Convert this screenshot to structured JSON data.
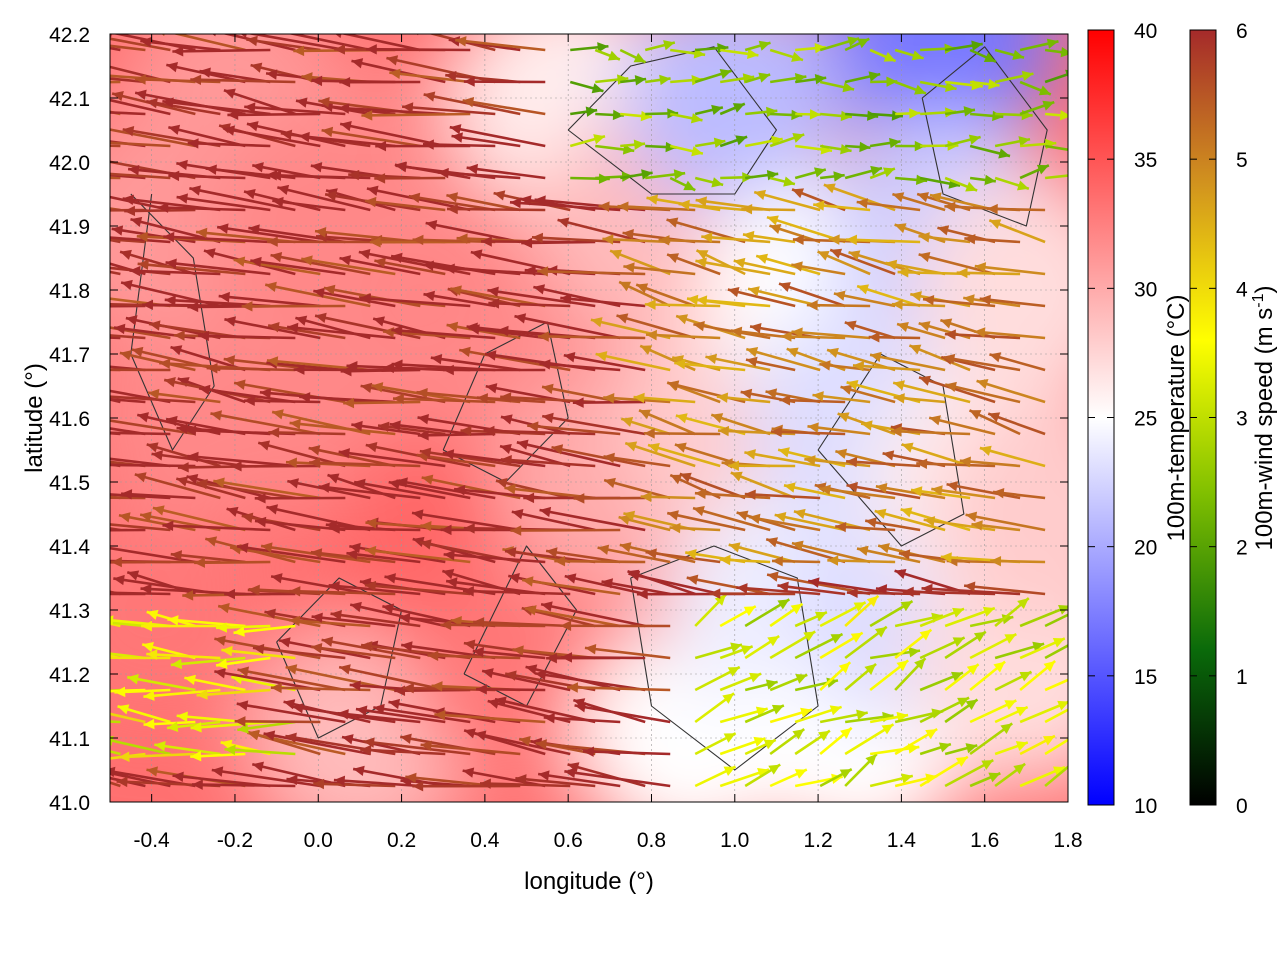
{
  "chart_data": {
    "type": "heatmap",
    "overlay": "wind vectors and terrain contours",
    "xlabel": "longitude (°)",
    "ylabel": "latitude (°)",
    "xlim": [
      -0.5,
      1.8
    ],
    "ylim": [
      41.0,
      42.2
    ],
    "xticks": [
      "-0.4",
      "-0.2",
      "0.0",
      "0.2",
      "0.4",
      "0.6",
      "0.8",
      "1.0",
      "1.2",
      "1.4",
      "1.6",
      "1.8"
    ],
    "yticks": [
      "41.0",
      "41.1",
      "41.2",
      "41.3",
      "41.4",
      "41.5",
      "41.6",
      "41.7",
      "41.8",
      "41.9",
      "42.0",
      "42.1",
      "42.2"
    ],
    "grid": true,
    "temperature_colorbar": {
      "label": "100m-temperature (°C)",
      "range": [
        10,
        40
      ],
      "ticks": [
        "10",
        "15",
        "20",
        "25",
        "30",
        "35",
        "40"
      ],
      "colors": [
        "#0000ff",
        "#ffffff",
        "#ff0000"
      ]
    },
    "wind_colorbar": {
      "label_main": "100m-wind speed (m s",
      "label_sup": "-1",
      "label_end": ")",
      "range": [
        0,
        6
      ],
      "ticks": [
        "0",
        "1",
        "2",
        "3",
        "4",
        "5",
        "6"
      ],
      "colors": [
        "#000000",
        "#0a6a0a",
        "#7fbf00",
        "#ffff00",
        "#d2941e",
        "#a52a2a"
      ]
    },
    "temperature_field": [
      {
        "lon": -0.4,
        "lat": 41.3,
        "t": 33
      },
      {
        "lon": -0.3,
        "lat": 41.6,
        "t": 32
      },
      {
        "lon": -0.4,
        "lat": 41.9,
        "t": 31
      },
      {
        "lon": -0.2,
        "lat": 42.1,
        "t": 31
      },
      {
        "lon": 0.0,
        "lat": 41.9,
        "t": 32
      },
      {
        "lon": 0.1,
        "lat": 41.6,
        "t": 32
      },
      {
        "lon": 0.1,
        "lat": 41.1,
        "t": 29
      },
      {
        "lon": 0.3,
        "lat": 41.4,
        "t": 34
      },
      {
        "lon": 0.3,
        "lat": 42.0,
        "t": 32
      },
      {
        "lon": 0.5,
        "lat": 41.7,
        "t": 32
      },
      {
        "lon": 0.5,
        "lat": 41.2,
        "t": 33
      },
      {
        "lon": 0.6,
        "lat": 42.1,
        "t": 26
      },
      {
        "lon": 0.7,
        "lat": 41.5,
        "t": 30
      },
      {
        "lon": 0.8,
        "lat": 41.9,
        "t": 29
      },
      {
        "lon": 0.9,
        "lat": 41.1,
        "t": 25
      },
      {
        "lon": 1.0,
        "lat": 42.1,
        "t": 21
      },
      {
        "lon": 1.0,
        "lat": 41.6,
        "t": 28
      },
      {
        "lon": 1.1,
        "lat": 41.3,
        "t": 24
      },
      {
        "lon": 1.2,
        "lat": 41.8,
        "t": 25
      },
      {
        "lon": 1.3,
        "lat": 41.6,
        "t": 23
      },
      {
        "lon": 1.3,
        "lat": 41.1,
        "t": 25
      },
      {
        "lon": 1.4,
        "lat": 41.3,
        "t": 23
      },
      {
        "lon": 1.5,
        "lat": 42.2,
        "t": 17
      },
      {
        "lon": 1.5,
        "lat": 41.9,
        "t": 22
      },
      {
        "lon": 1.6,
        "lat": 41.5,
        "t": 26
      },
      {
        "lon": 1.7,
        "lat": 41.8,
        "t": 27
      },
      {
        "lon": 1.7,
        "lat": 41.2,
        "t": 27
      },
      {
        "lon": 1.75,
        "lat": 41.45,
        "t": 28
      }
    ],
    "wind_regimes": [
      {
        "lon": [
          -0.5,
          0.8
        ],
        "lat": [
          41.0,
          42.2
        ],
        "u": -5.6,
        "v": 0.7,
        "speed": 6
      },
      {
        "lon": [
          -0.5,
          0.0
        ],
        "lat": [
          41.05,
          41.3
        ],
        "u": -4.0,
        "v": 0.3,
        "speed": 3.5
      },
      {
        "lon": [
          0.8,
          1.8
        ],
        "lat": [
          41.35,
          41.95
        ],
        "u": -4.0,
        "v": 0.8,
        "speed": 5
      },
      {
        "lon": [
          0.85,
          1.8
        ],
        "lat": [
          41.0,
          41.3
        ],
        "u": 2.5,
        "v": 1.2,
        "speed": 3.2
      },
      {
        "lon": [
          0.6,
          1.8
        ],
        "lat": [
          41.95,
          42.2
        ],
        "u": 2.0,
        "v": 0.0,
        "speed": 2.5
      }
    ],
    "contours": [
      {
        "lon": [
          -0.45,
          -0.3,
          -0.25,
          -0.35,
          -0.45,
          -0.4
        ],
        "lat": [
          41.95,
          41.85,
          41.65,
          41.55,
          41.7,
          41.95
        ]
      },
      {
        "lon": [
          0.3,
          0.45,
          0.6,
          0.55,
          0.4,
          0.3
        ],
        "lat": [
          41.55,
          41.5,
          41.6,
          41.75,
          41.7,
          41.55
        ]
      },
      {
        "lon": [
          0.35,
          0.5,
          0.62,
          0.5,
          0.35
        ],
        "lat": [
          41.2,
          41.15,
          41.3,
          41.4,
          41.2
        ]
      },
      {
        "lon": [
          0.75,
          0.95,
          1.15,
          1.2,
          1.0,
          0.8,
          0.75
        ],
        "lat": [
          41.35,
          41.4,
          41.35,
          41.15,
          41.05,
          41.15,
          41.35
        ]
      },
      {
        "lon": [
          0.6,
          0.75,
          0.95,
          1.1,
          1.0,
          0.8,
          0.6
        ],
        "lat": [
          42.05,
          42.15,
          42.18,
          42.05,
          41.95,
          41.95,
          42.05
        ]
      },
      {
        "lon": [
          1.2,
          1.35,
          1.5,
          1.55,
          1.4,
          1.2
        ],
        "lat": [
          41.55,
          41.7,
          41.65,
          41.45,
          41.4,
          41.55
        ]
      },
      {
        "lon": [
          1.45,
          1.6,
          1.75,
          1.7,
          1.5,
          1.45
        ],
        "lat": [
          42.1,
          42.18,
          42.05,
          41.9,
          41.95,
          42.1
        ]
      },
      {
        "lon": [
          -0.1,
          0.05,
          0.2,
          0.15,
          0.0,
          -0.1
        ],
        "lat": [
          41.25,
          41.35,
          41.3,
          41.15,
          41.1,
          41.25
        ]
      }
    ]
  }
}
